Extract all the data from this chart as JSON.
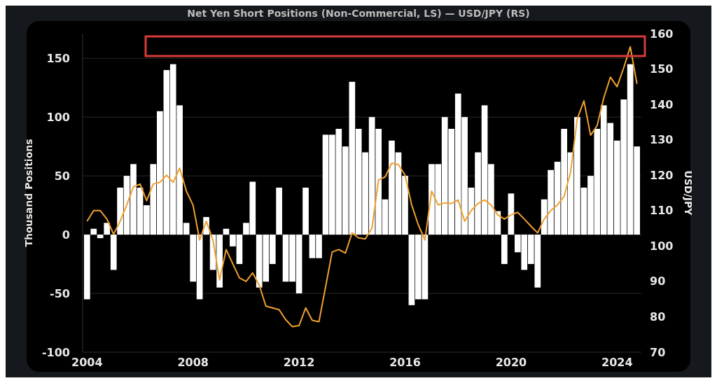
{
  "chart_data": {
    "type": "bar",
    "title": "Net Yen Short Positions (Non-Commercial, LS) — USD/JPY (RS)",
    "ylabel": "Thousand Positions",
    "y2label": "USD/JPY",
    "x": [
      "2004-01",
      "2004-04",
      "2004-07",
      "2004-10",
      "2005-01",
      "2005-04",
      "2005-07",
      "2005-10",
      "2006-01",
      "2006-04",
      "2006-07",
      "2006-10",
      "2007-01",
      "2007-04",
      "2007-07",
      "2007-10",
      "2008-01",
      "2008-04",
      "2008-07",
      "2008-10",
      "2009-01",
      "2009-04",
      "2009-07",
      "2009-10",
      "2010-01",
      "2010-04",
      "2010-07",
      "2010-10",
      "2011-01",
      "2011-04",
      "2011-07",
      "2011-10",
      "2012-01",
      "2012-04",
      "2012-07",
      "2012-10",
      "2013-01",
      "2013-04",
      "2013-07",
      "2013-10",
      "2014-01",
      "2014-04",
      "2014-07",
      "2014-10",
      "2015-01",
      "2015-04",
      "2015-07",
      "2015-10",
      "2016-01",
      "2016-04",
      "2016-07",
      "2016-10",
      "2017-01",
      "2017-04",
      "2017-07",
      "2017-10",
      "2018-01",
      "2018-04",
      "2018-07",
      "2018-10",
      "2019-01",
      "2019-04",
      "2019-07",
      "2019-10",
      "2020-01",
      "2020-04",
      "2020-07",
      "2020-10",
      "2021-01",
      "2021-04",
      "2021-07",
      "2021-10",
      "2022-01",
      "2022-04",
      "2022-07",
      "2022-10",
      "2023-01",
      "2023-04",
      "2023-07",
      "2023-10",
      "2024-01",
      "2024-04",
      "2024-07",
      "2024-10"
    ],
    "series": [
      {
        "color": "#ffffff",
        "values": [
          -55,
          5,
          -3,
          10,
          -30,
          40,
          50,
          60,
          40,
          25,
          60,
          105,
          140,
          145,
          110,
          10,
          -40,
          -55,
          15,
          -30,
          -45,
          5,
          -10,
          -25,
          10,
          45,
          -45,
          -40,
          -25,
          40,
          -40,
          -40,
          -50,
          40,
          -20,
          -20,
          85,
          85,
          90,
          75,
          130,
          90,
          70,
          100,
          90,
          30,
          80,
          70,
          50,
          -60,
          -55,
          -55,
          60,
          60,
          100,
          90,
          120,
          100,
          40,
          70,
          110,
          60,
          20,
          -25,
          35,
          -15,
          -30,
          -25,
          -45,
          30,
          55,
          62,
          90,
          70,
          100,
          40,
          50,
          90,
          110,
          95,
          80,
          115,
          145,
          75
        ]
      },
      {
        "type": "line",
        "axis": "y2",
        "color": "#f0a030",
        "values": [
          107,
          110,
          110,
          107.6,
          103.3,
          107,
          111.6,
          116.7,
          117.5,
          112.8,
          117.5,
          118,
          120,
          118,
          122,
          115.5,
          111.5,
          101.7,
          107,
          101.7,
          90.4,
          99,
          95,
          91,
          90,
          92.4,
          89,
          83,
          82.5,
          82,
          79.2,
          77.2,
          77.5,
          82.5,
          79,
          78.6,
          88.5,
          98.3,
          99,
          98,
          103.7,
          102.3,
          102,
          105,
          118.7,
          119.5,
          123.4,
          123,
          120,
          111.6,
          106,
          101.7,
          115.5,
          111.6,
          112.2,
          112,
          113,
          107,
          110,
          112,
          113,
          111.6,
          108.8,
          107.6,
          108.8,
          109.5,
          107.6,
          105.6,
          103.7,
          107.6,
          110,
          111.6,
          114,
          121,
          135.9,
          141,
          131.3,
          134,
          141.8,
          147.7,
          145,
          150.3,
          156.3,
          145.8
        ]
      }
    ],
    "xlim": [
      "2003-11",
      "2024-12"
    ],
    "xticks": [
      "2004",
      "2008",
      "2012",
      "2016",
      "2020",
      "2024"
    ],
    "ylim": [
      -100,
      171
    ],
    "yticks": [
      -100,
      -50,
      0,
      50,
      100,
      150
    ],
    "y2lim": [
      70,
      160
    ],
    "y2ticks": [
      70,
      80,
      90,
      100,
      110,
      120,
      130,
      140,
      150,
      160
    ],
    "grid": "y",
    "line_style": "solid",
    "marker": "none"
  }
}
